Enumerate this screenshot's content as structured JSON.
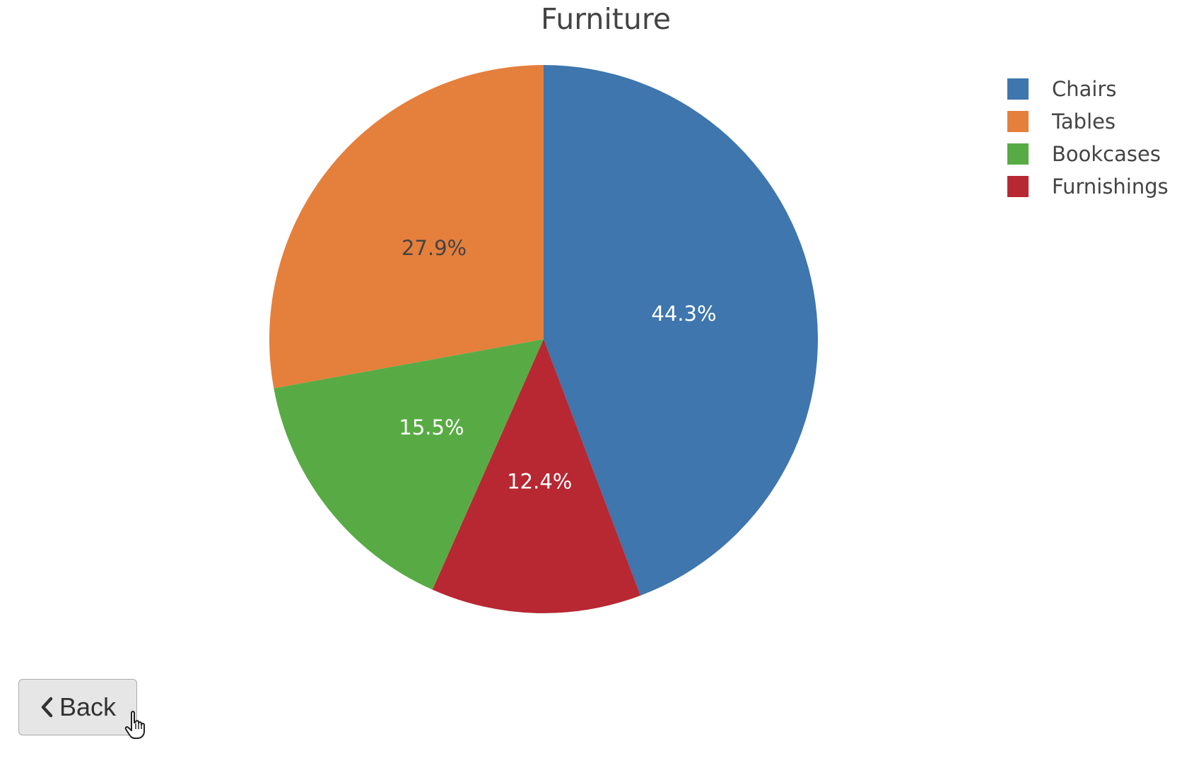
{
  "chart_data": {
    "type": "pie",
    "title": "Furniture",
    "slices": [
      {
        "label": "Chairs",
        "value": 44.3,
        "display": "44.3%",
        "color": "#3e76ad",
        "label_color": "#ffffff"
      },
      {
        "label": "Furnishings",
        "value": 12.4,
        "display": "12.4%",
        "color": "#b72833",
        "label_color": "#ffffff"
      },
      {
        "label": "Bookcases",
        "value": 15.5,
        "display": "15.5%",
        "color": "#58ab44",
        "label_color": "#ffffff"
      },
      {
        "label": "Tables",
        "value": 27.9,
        "display": "27.9%",
        "color": "#e57f3c",
        "label_color": "#444444"
      }
    ],
    "legend": [
      "Chairs",
      "Tables",
      "Bookcases",
      "Furnishings"
    ],
    "legend_position": "top-right",
    "start": "12 o'clock",
    "direction": "clockwise"
  },
  "back_button": {
    "label": "Back",
    "icon": "chevron-left-icon"
  },
  "cursor": {
    "icon": "hand-pointer-icon"
  }
}
